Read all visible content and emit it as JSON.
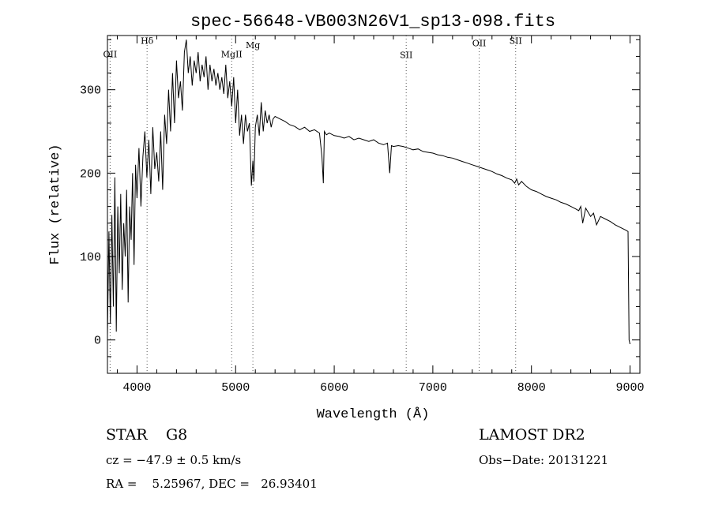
{
  "chart_data": {
    "type": "line",
    "title": "spec-56648-VB003N26V1_sp13-098.fits",
    "xlabel": "Wavelength (Å)",
    "ylabel": "Flux (relative)",
    "xlim": [
      3700,
      9100
    ],
    "ylim": [
      -40,
      365
    ],
    "xticks": [
      4000,
      5000,
      6000,
      7000,
      8000,
      9000
    ],
    "yticks": [
      0,
      100,
      200,
      300
    ],
    "grid": false,
    "line_color": "#000000",
    "line_markers": [
      {
        "label": "OII",
        "x": 3727,
        "label_y": 339
      },
      {
        "label": "Hδ",
        "x": 4102,
        "label_y": 355
      },
      {
        "label": "MgII",
        "x": 4960,
        "label_y": 339
      },
      {
        "label": "Mg",
        "x": 5175,
        "label_y": 350
      },
      {
        "label": "SII",
        "x": 6730,
        "label_y": 338
      },
      {
        "label": "OII",
        "x": 7470,
        "label_y": 352
      },
      {
        "label": "SII",
        "x": 7840,
        "label_y": 355
      }
    ],
    "series": [
      {
        "x": [
          3700,
          3715,
          3730,
          3745,
          3760,
          3775,
          3790,
          3805,
          3820,
          3835,
          3850,
          3865,
          3880,
          3895,
          3910,
          3925,
          3940,
          3955,
          3970,
          3985,
          4000,
          4020,
          4040,
          4060,
          4080,
          4100,
          4120,
          4140,
          4160,
          4180,
          4200,
          4220,
          4240,
          4260,
          4280,
          4300,
          4320,
          4340,
          4360,
          4380,
          4400,
          4420,
          4440,
          4460,
          4480,
          4500,
          4520,
          4540,
          4560,
          4580,
          4600,
          4620,
          4640,
          4660,
          4680,
          4700,
          4720,
          4740,
          4760,
          4780,
          4800,
          4820,
          4840,
          4860,
          4880,
          4900,
          4920,
          4940,
          4960,
          4980,
          5000,
          5020,
          5040,
          5060,
          5080,
          5100,
          5120,
          5140,
          5160,
          5175,
          5185,
          5200,
          5220,
          5240,
          5260,
          5280,
          5300,
          5320,
          5340,
          5360,
          5380,
          5400,
          5450,
          5500,
          5550,
          5600,
          5650,
          5700,
          5750,
          5800,
          5850,
          5875,
          5890,
          5900,
          5920,
          5950,
          6000,
          6050,
          6100,
          6150,
          6200,
          6250,
          6300,
          6350,
          6400,
          6450,
          6500,
          6540,
          6563,
          6580,
          6600,
          6650,
          6700,
          6750,
          6800,
          6850,
          6900,
          6950,
          7000,
          7050,
          7100,
          7150,
          7200,
          7250,
          7300,
          7350,
          7400,
          7450,
          7500,
          7550,
          7600,
          7650,
          7700,
          7750,
          7800,
          7830,
          7850,
          7870,
          7900,
          7950,
          8000,
          8050,
          8100,
          8150,
          8200,
          8250,
          8300,
          8350,
          8400,
          8450,
          8480,
          8500,
          8520,
          8550,
          8600,
          8630,
          8660,
          8700,
          8750,
          8800,
          8850,
          8900,
          8950,
          8980,
          8990,
          9000
        ],
        "y": [
          5,
          130,
          20,
          150,
          40,
          195,
          10,
          160,
          80,
          175,
          60,
          140,
          100,
          180,
          45,
          160,
          120,
          200,
          90,
          210,
          170,
          230,
          160,
          220,
          250,
          195,
          240,
          175,
          255,
          205,
          225,
          190,
          250,
          180,
          270,
          235,
          300,
          250,
          320,
          260,
          335,
          290,
          310,
          275,
          345,
          360,
          320,
          340,
          305,
          335,
          320,
          345,
          310,
          330,
          315,
          340,
          300,
          330,
          310,
          325,
          305,
          320,
          300,
          315,
          295,
          330,
          290,
          310,
          280,
          315,
          260,
          300,
          245,
          270,
          235,
          270,
          250,
          260,
          185,
          215,
          190,
          255,
          270,
          245,
          285,
          250,
          275,
          260,
          270,
          255,
          265,
          268,
          265,
          262,
          258,
          256,
          252,
          255,
          250,
          252,
          248,
          220,
          188,
          250,
          246,
          248,
          245,
          244,
          242,
          244,
          240,
          242,
          240,
          238,
          240,
          236,
          234,
          236,
          200,
          233,
          232,
          233,
          232,
          230,
          228,
          229,
          226,
          225,
          224,
          222,
          221,
          219,
          218,
          216,
          214,
          212,
          210,
          208,
          206,
          204,
          202,
          199,
          197,
          194,
          192,
          188,
          193,
          186,
          190,
          184,
          180,
          178,
          175,
          172,
          170,
          168,
          165,
          163,
          160,
          157,
          155,
          160,
          140,
          158,
          148,
          152,
          138,
          148,
          145,
          142,
          138,
          135,
          132,
          130,
          0,
          -5
        ]
      }
    ]
  },
  "info": {
    "object_class": "STAR",
    "subclass": "G8",
    "survey": "LAMOST DR2",
    "cz": "cz = −47.9 ± 0.5 km/s",
    "obs_date": "Obs−Date: 20131221",
    "coords": "RA =    5.25967, DEC =   26.93401"
  }
}
